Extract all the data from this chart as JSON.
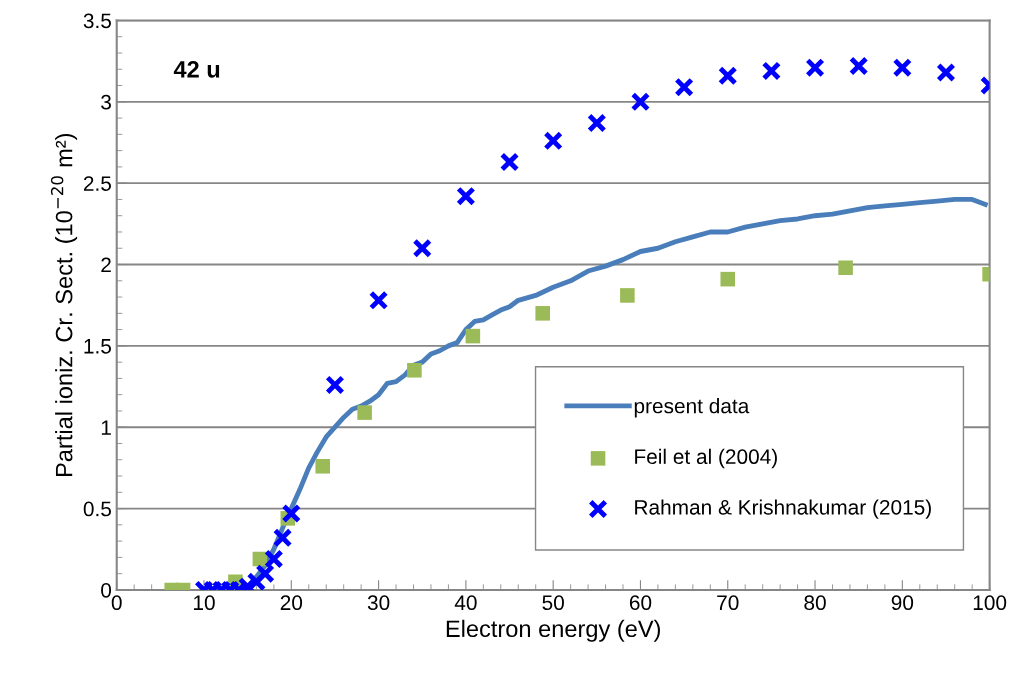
{
  "chart_data": {
    "type": "line",
    "xlabel": "Electron energy (eV)",
    "ylabel": "Partial ioniz. Cr. Sect. (10$^{−20}$ m²)",
    "annotations": [
      "42 u"
    ],
    "xlim": [
      0,
      100
    ],
    "xticks": [
      0,
      10,
      20,
      30,
      40,
      50,
      60,
      70,
      80,
      90,
      100
    ],
    "ylim": [
      0,
      3.5
    ],
    "yticks": [
      0,
      0.5,
      1,
      1.5,
      2,
      2.5,
      3,
      3.5
    ],
    "grid": "y",
    "legend": "bottom right",
    "series": [
      {
        "name": "present data",
        "color": "#4a7ebb",
        "marker": "none",
        "line_style": "solid",
        "x": [
          10,
          14,
          15,
          16,
          17,
          18,
          19,
          20,
          21,
          22,
          23,
          24,
          25,
          26,
          27,
          28,
          29,
          30,
          31,
          32,
          33,
          34,
          35,
          36,
          37,
          38,
          39,
          40,
          41,
          42,
          43,
          44,
          45,
          46,
          48,
          50,
          52,
          54,
          56,
          58,
          60,
          62,
          64,
          66,
          68,
          70,
          72,
          74,
          76,
          78,
          80,
          82,
          84,
          86,
          88,
          90,
          92,
          94,
          96,
          98,
          99.5
        ],
        "values": [
          0,
          0,
          0.02,
          0.08,
          0.15,
          0.25,
          0.38,
          0.5,
          0.62,
          0.75,
          0.85,
          0.94,
          1.0,
          1.06,
          1.11,
          1.13,
          1.16,
          1.2,
          1.27,
          1.28,
          1.32,
          1.38,
          1.4,
          1.45,
          1.47,
          1.5,
          1.52,
          1.6,
          1.65,
          1.66,
          1.69,
          1.72,
          1.74,
          1.78,
          1.81,
          1.86,
          1.9,
          1.96,
          1.99,
          2.03,
          2.08,
          2.1,
          2.14,
          2.17,
          2.2,
          2.2,
          2.23,
          2.25,
          2.27,
          2.28,
          2.3,
          2.31,
          2.33,
          2.35,
          2.36,
          2.37,
          2.38,
          2.39,
          2.4,
          2.4,
          2.37
        ]
      },
      {
        "name": "Feil et al (2004)",
        "type": "scatter",
        "color": "#9bbb59",
        "marker": "square",
        "x": [
          6.3,
          7.6,
          13.6,
          16.4,
          19.6,
          23.6,
          28.4,
          34.1,
          40.8,
          48.8,
          58.5,
          70,
          83.5,
          100
        ],
        "values": [
          0,
          0,
          0.05,
          0.19,
          0.44,
          0.76,
          1.09,
          1.35,
          1.56,
          1.7,
          1.81,
          1.91,
          1.98,
          1.94
        ]
      },
      {
        "name": "Rahman & Krishnakumar (2015)",
        "type": "scatter",
        "color": "#0000ff",
        "marker": "cross",
        "x": [
          10,
          11,
          12,
          13,
          14,
          15,
          16,
          17,
          18,
          19,
          20,
          25,
          30,
          35,
          40,
          45,
          50,
          55,
          60,
          65,
          70,
          75,
          80,
          85,
          90,
          95,
          100
        ],
        "values": [
          0,
          0,
          0,
          0,
          0,
          0.02,
          0.05,
          0.1,
          0.19,
          0.32,
          0.47,
          1.26,
          1.78,
          2.1,
          2.42,
          2.63,
          2.76,
          2.87,
          3.0,
          3.09,
          3.16,
          3.19,
          3.21,
          3.22,
          3.21,
          3.18,
          3.1
        ]
      }
    ]
  }
}
